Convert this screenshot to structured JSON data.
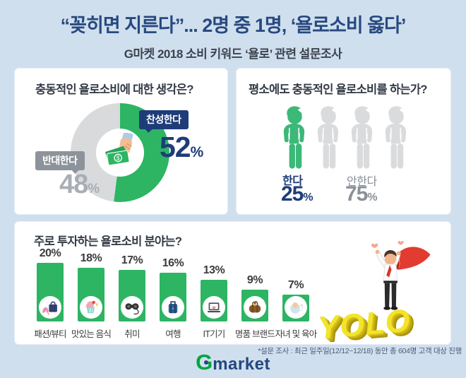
{
  "header": {
    "title": "“꽂히면 지른다”... 2명 중 1명, ‘욜로소비 옳다’",
    "subtitle": "G마켓 2018 소비 키워드 ‘욜로’ 관련 설문조사"
  },
  "chart_data": [
    {
      "type": "pie",
      "style": "donut",
      "title": "충동적인 욜로소비에 대한 생각은?",
      "labels": [
        "찬성한다",
        "반대한다"
      ],
      "values": [
        52,
        48
      ],
      "unit": "%",
      "colors": [
        "#2db563",
        "#d8dadc"
      ],
      "center_icon": "hand-with-money-icon"
    },
    {
      "type": "pictograph",
      "title": "평소에도 충동적인 욜로소비를 하는가?",
      "labels": [
        "한다",
        "안한다"
      ],
      "values": [
        25,
        75
      ],
      "unit": "%",
      "icon_count": 4,
      "highlighted_icons": 1,
      "highlight_color": "#3cb878",
      "muted_color": "#d9dbdd"
    },
    {
      "type": "bar",
      "title": "주로 투자하는 욜로소비 분야는?",
      "categories": [
        "패션/뷰티",
        "맛있는 음식",
        "취미",
        "여행",
        "IT기기",
        "명품 브랜드",
        "자녀 및 육아"
      ],
      "values": [
        20,
        18,
        17,
        16,
        13,
        9,
        7
      ],
      "unit": "%",
      "bar_color": "#2db563",
      "icons": [
        "fashion-icon",
        "food-icon",
        "hobby-icon",
        "travel-icon",
        "laptop-icon",
        "luxury-bag-icon",
        "baby-icon"
      ]
    }
  ],
  "illustration": {
    "yolo_text": "YOLO"
  },
  "footer": {
    "note": "*설문 조사 : 최근 일주일(12/12~12/18) 동안 총 604명 고객 대상 진행",
    "logo_g": "G",
    "logo_market": "market"
  }
}
